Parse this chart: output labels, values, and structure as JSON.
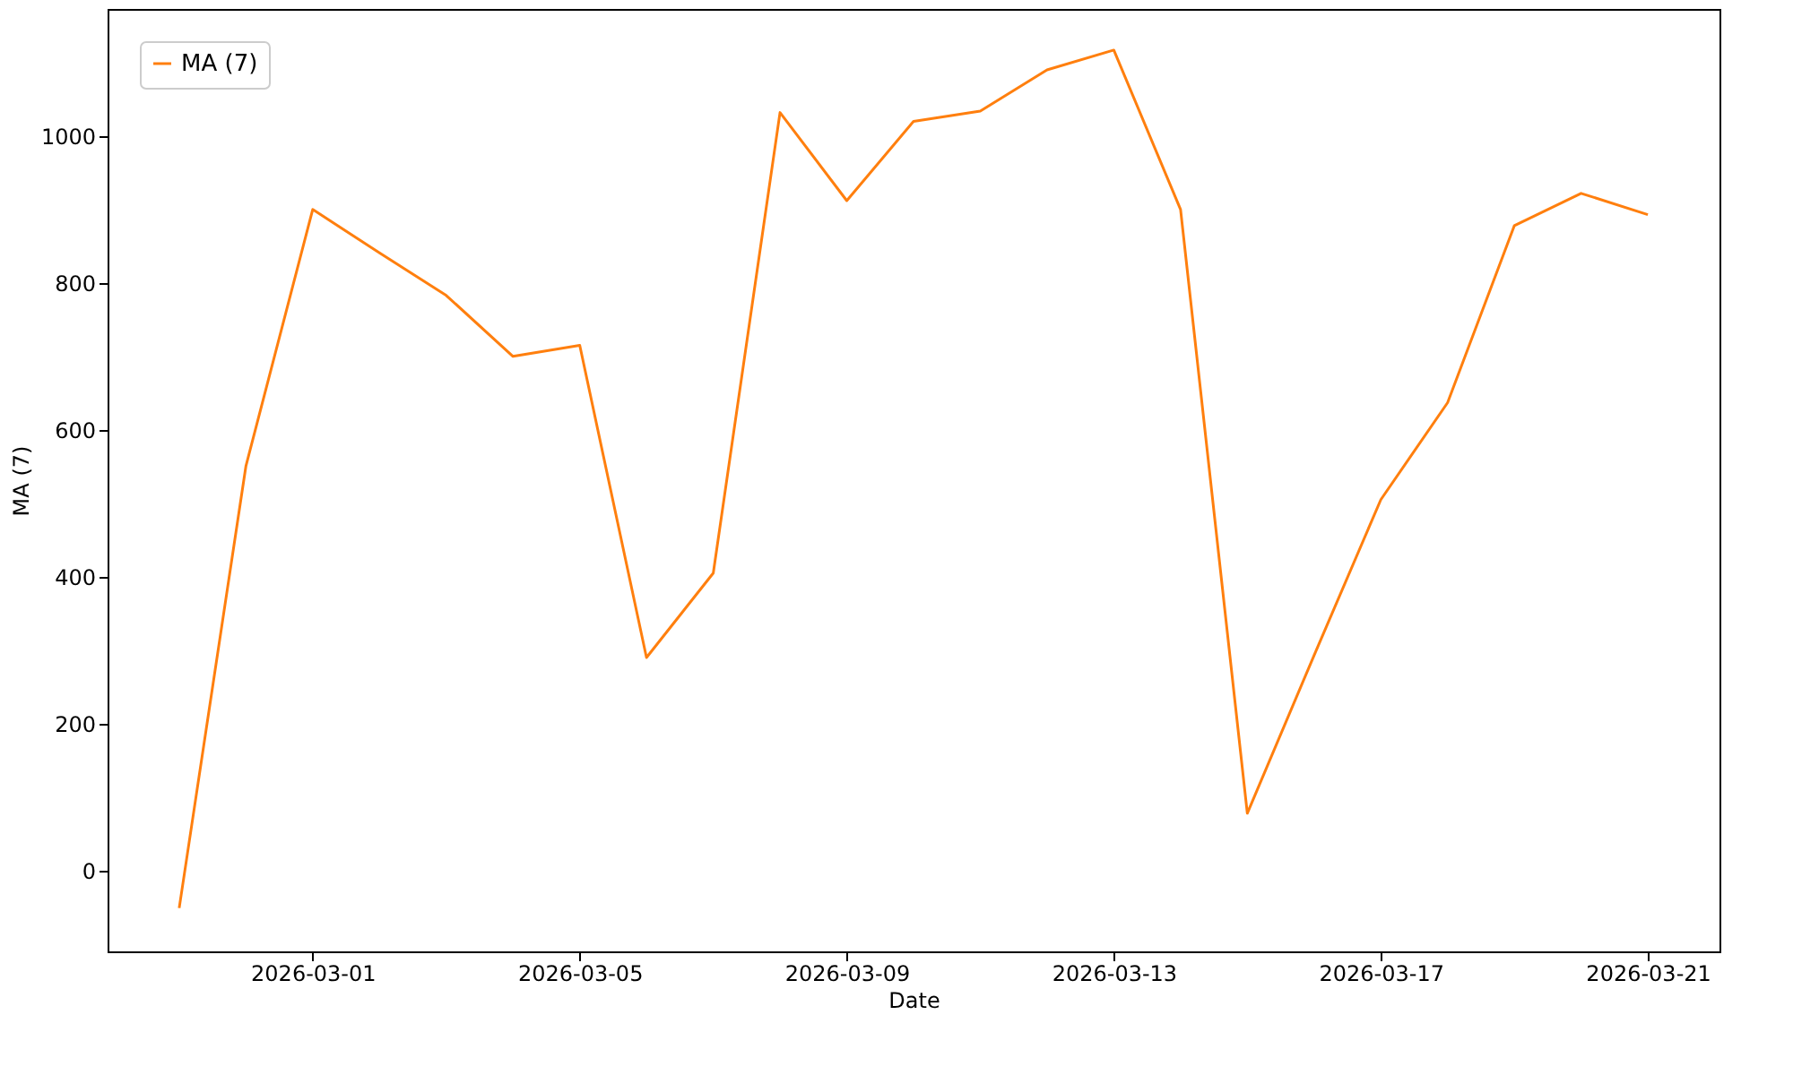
{
  "chart_data": {
    "type": "line",
    "xlabel": "Date",
    "ylabel": "MA (7)",
    "x": [
      "2026-02-27",
      "2026-02-28",
      "2026-03-01",
      "2026-03-02",
      "2026-03-03",
      "2026-03-04",
      "2026-03-05",
      "2026-03-06",
      "2026-03-07",
      "2026-03-08",
      "2026-03-09",
      "2026-03-10",
      "2026-03-11",
      "2026-03-12",
      "2026-03-13",
      "2026-03-14",
      "2026-03-15",
      "2026-03-16",
      "2026-03-17",
      "2026-03-18",
      "2026-03-19",
      "2026-03-20",
      "2026-03-21"
    ],
    "series": [
      {
        "name": "MA (7)",
        "color": "#ff7f0e",
        "values": [
          -51,
          551,
          900,
          841,
          783,
          700,
          715,
          290,
          405,
          1032,
          912,
          1020,
          1034,
          1090,
          1117,
          900,
          78,
          293,
          505,
          637,
          878,
          922,
          893
        ]
      }
    ],
    "xlim": [
      "2026-02-25T22:15",
      "2026-03-22T01:45"
    ],
    "xticks": [
      "2026-03-01",
      "2026-03-05",
      "2026-03-09",
      "2026-03-13",
      "2026-03-17",
      "2026-03-21"
    ],
    "ylim": [
      -110,
      1173
    ],
    "yticks": [
      0,
      200,
      400,
      600,
      800,
      1000
    ],
    "grid": false,
    "legend": "top left",
    "marker": "none",
    "line_style": "solid"
  }
}
